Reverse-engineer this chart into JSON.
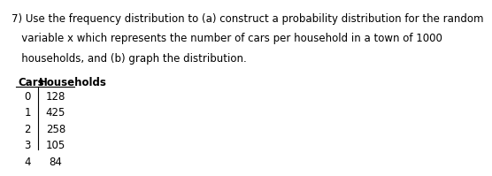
{
  "question_text_line1": "7) Use the frequency distribution to (a) construct a probability distribution for the random",
  "question_text_line2": "   variable x which represents the number of cars per household in a town of 1000",
  "question_text_line3": "   households, and (b) graph the distribution.",
  "col1_header": "Cars",
  "col2_header": "Households",
  "cars": [
    0,
    1,
    2,
    3,
    4
  ],
  "households": [
    128,
    425,
    258,
    105,
    84
  ],
  "bg_color": "#ffffff",
  "text_color": "#000000",
  "font_size": 8.5
}
